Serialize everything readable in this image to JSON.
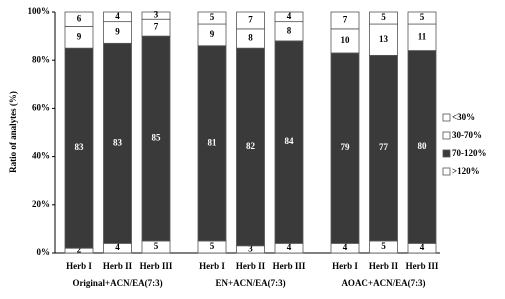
{
  "chart_data": {
    "type": "stacked_bar",
    "y_label": "Ratio of analytes (%)",
    "categories": [
      "Herb I",
      "Herb II",
      "Herb III",
      "Herb I",
      "Herb II",
      "Herb III",
      "Herb I",
      "Herb II",
      "Herb III"
    ],
    "groups": [
      "Original+ACN/EA(7:3)",
      "EN+ACN/EA(7:3)",
      "AOAC+ACN/EA(7:3)"
    ],
    "series": [
      {
        "name": ">120%",
        "color": "#ffffff",
        "values": [
          2,
          4,
          5,
          5,
          3,
          4,
          4,
          5,
          4
        ]
      },
      {
        "name": "70-120%",
        "color": "#3a3a3a",
        "values": [
          83,
          83,
          85,
          81,
          82,
          84,
          79,
          77,
          80
        ]
      },
      {
        "name": "30-70%",
        "color": "#ffffff",
        "values": [
          9,
          9,
          7,
          9,
          8,
          8,
          10,
          13,
          11
        ]
      },
      {
        "name": "<30%",
        "color": "#ffffff",
        "values": [
          6,
          4,
          3,
          5,
          7,
          4,
          7,
          5,
          5
        ]
      }
    ],
    "ylim": [
      0,
      100
    ],
    "yticks": [
      {
        "value": 0,
        "label": "0%"
      },
      {
        "value": 20,
        "label": "20%"
      },
      {
        "value": 40,
        "label": "40%"
      },
      {
        "value": 60,
        "label": "60%"
      },
      {
        "value": 80,
        "label": "80%"
      },
      {
        "value": 100,
        "label": "100%"
      }
    ]
  }
}
